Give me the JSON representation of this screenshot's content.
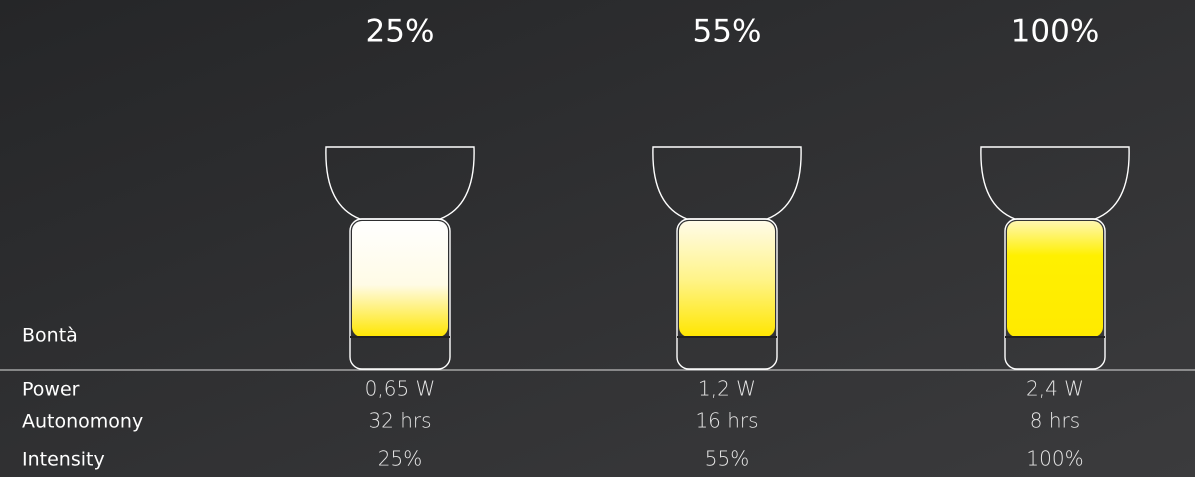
{
  "product": "Bontà",
  "row_labels": [
    "Power",
    "Autonomony",
    "Intensity"
  ],
  "columns": [
    {
      "heading": "25%",
      "power": "0,65 W",
      "autonomy": "32 hrs",
      "intensity": "25%"
    },
    {
      "heading": "55%",
      "power": "1,2 W",
      "autonomy": "16 hrs",
      "intensity": "55%"
    },
    {
      "heading": "100%",
      "power": "2,4 W",
      "autonomy": "8 hrs",
      "intensity": "100%"
    }
  ]
}
